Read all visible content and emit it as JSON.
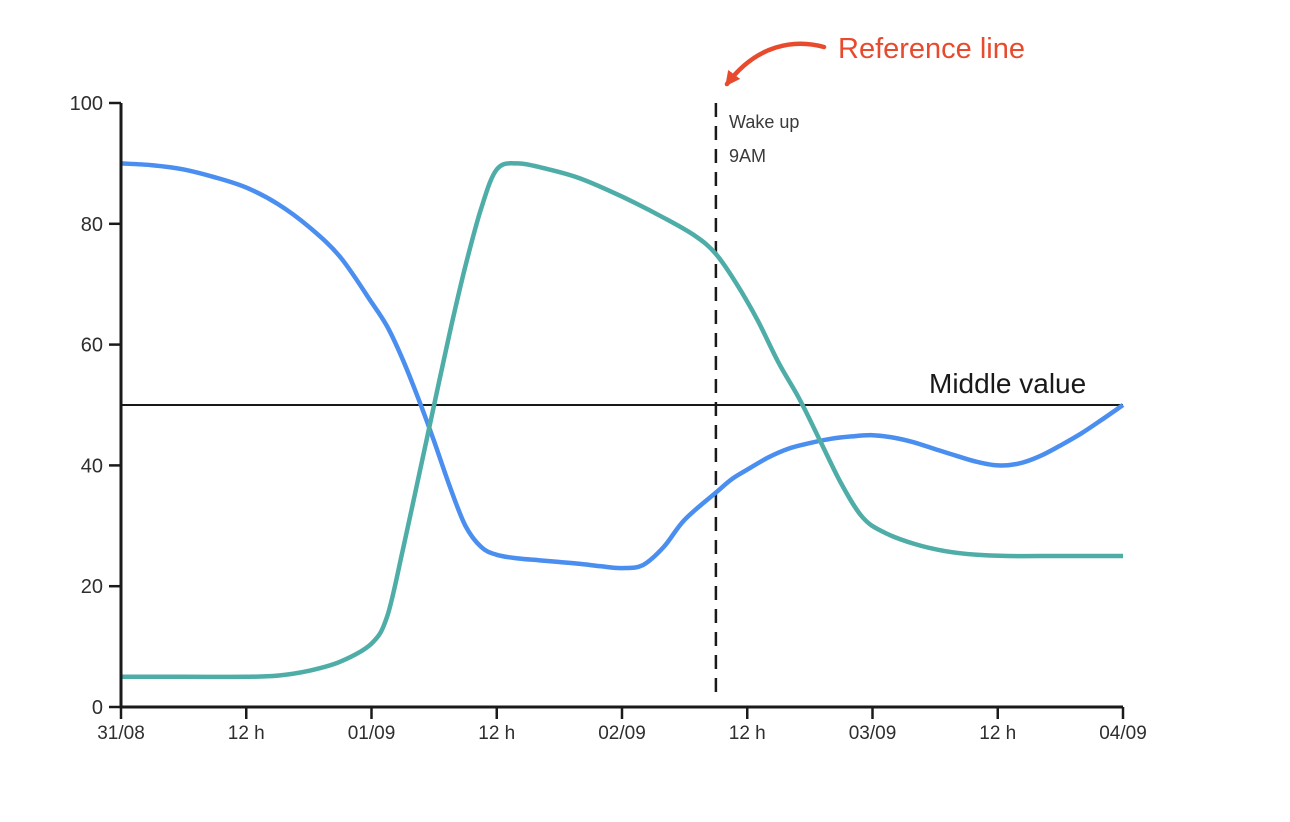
{
  "page": {
    "background": "#ffffff"
  },
  "chart_data": {
    "type": "line",
    "title": "",
    "xlabel": "",
    "ylabel": "",
    "grid": false,
    "legend": false,
    "axis_color": "#1a1a1a",
    "tick_label_color": "#2e2e2e",
    "x_axis": {
      "range_hours": [
        0,
        96
      ],
      "tick_hours": [
        0,
        12,
        24,
        36,
        48,
        60,
        72,
        84,
        96
      ],
      "tick_labels": [
        "31/08",
        "12 h",
        "01/09",
        "12 h",
        "02/09",
        "12 h",
        "03/09",
        "12 h",
        "04/09"
      ]
    },
    "y_axis": {
      "range": [
        0,
        100
      ],
      "tick_values": [
        0,
        20,
        40,
        60,
        80,
        100
      ],
      "tick_labels": [
        "0",
        "20",
        "40",
        "60",
        "80",
        "100"
      ]
    },
    "series": [
      {
        "name": "blue-line",
        "color": "#4a8ef0",
        "points": [
          [
            0,
            90
          ],
          [
            3,
            89.7
          ],
          [
            6,
            89
          ],
          [
            9,
            87.7
          ],
          [
            12,
            86
          ],
          [
            15,
            83.3
          ],
          [
            18,
            79.5
          ],
          [
            21,
            74.5
          ],
          [
            24,
            67
          ],
          [
            25.5,
            63
          ],
          [
            27,
            57.5
          ],
          [
            28.5,
            51
          ],
          [
            30,
            44
          ],
          [
            31.5,
            36.5
          ],
          [
            33,
            30
          ],
          [
            34.5,
            26.5
          ],
          [
            36,
            25.2
          ],
          [
            38,
            24.6
          ],
          [
            40,
            24.3
          ],
          [
            42,
            24
          ],
          [
            44,
            23.7
          ],
          [
            46,
            23.3
          ],
          [
            48,
            23
          ],
          [
            50,
            23.5
          ],
          [
            52,
            26.5
          ],
          [
            54,
            31
          ],
          [
            57,
            35.5
          ],
          [
            58.5,
            37.7
          ],
          [
            60,
            39.3
          ],
          [
            62,
            41.3
          ],
          [
            64,
            42.8
          ],
          [
            66,
            43.7
          ],
          [
            68,
            44.4
          ],
          [
            70,
            44.8
          ],
          [
            72,
            45
          ],
          [
            74,
            44.6
          ],
          [
            76,
            43.8
          ],
          [
            78,
            42.7
          ],
          [
            80,
            41.6
          ],
          [
            82,
            40.6
          ],
          [
            84,
            40
          ],
          [
            86,
            40.3
          ],
          [
            88,
            41.5
          ],
          [
            90,
            43.3
          ],
          [
            92,
            45.3
          ],
          [
            94,
            47.6
          ],
          [
            96,
            50
          ]
        ]
      },
      {
        "name": "teal-line",
        "color": "#4fada8",
        "points": [
          [
            0,
            5
          ],
          [
            6,
            5
          ],
          [
            12,
            5
          ],
          [
            15,
            5.2
          ],
          [
            18,
            6
          ],
          [
            21,
            7.5
          ],
          [
            24,
            10.5
          ],
          [
            25.5,
            15
          ],
          [
            27,
            26
          ],
          [
            28.5,
            38
          ],
          [
            30,
            50
          ],
          [
            31.5,
            62
          ],
          [
            33,
            73
          ],
          [
            34.5,
            82.5
          ],
          [
            36,
            89
          ],
          [
            38,
            90
          ],
          [
            41,
            89
          ],
          [
            44,
            87.5
          ],
          [
            48,
            84.5
          ],
          [
            52,
            81
          ],
          [
            55,
            78
          ],
          [
            57,
            75
          ],
          [
            59,
            70
          ],
          [
            61,
            64
          ],
          [
            63,
            57
          ],
          [
            65,
            51
          ],
          [
            67,
            44
          ],
          [
            69,
            37
          ],
          [
            71,
            31.5
          ],
          [
            73,
            29
          ],
          [
            76,
            27
          ],
          [
            79,
            25.8
          ],
          [
            82,
            25.2
          ],
          [
            85,
            25
          ],
          [
            90,
            25
          ],
          [
            96,
            25
          ]
        ]
      }
    ],
    "reference_lines": {
      "horizontal": {
        "value": 50,
        "label": "Middle value",
        "color": "#191919"
      },
      "vertical": {
        "hour": 57,
        "style": "dashed",
        "color": "#1a1a1a",
        "label_line1": "Wake up",
        "label_line2": "9AM"
      }
    },
    "annotation": {
      "text": "Reference line",
      "color": "#e84a2d",
      "arrow": true
    }
  }
}
